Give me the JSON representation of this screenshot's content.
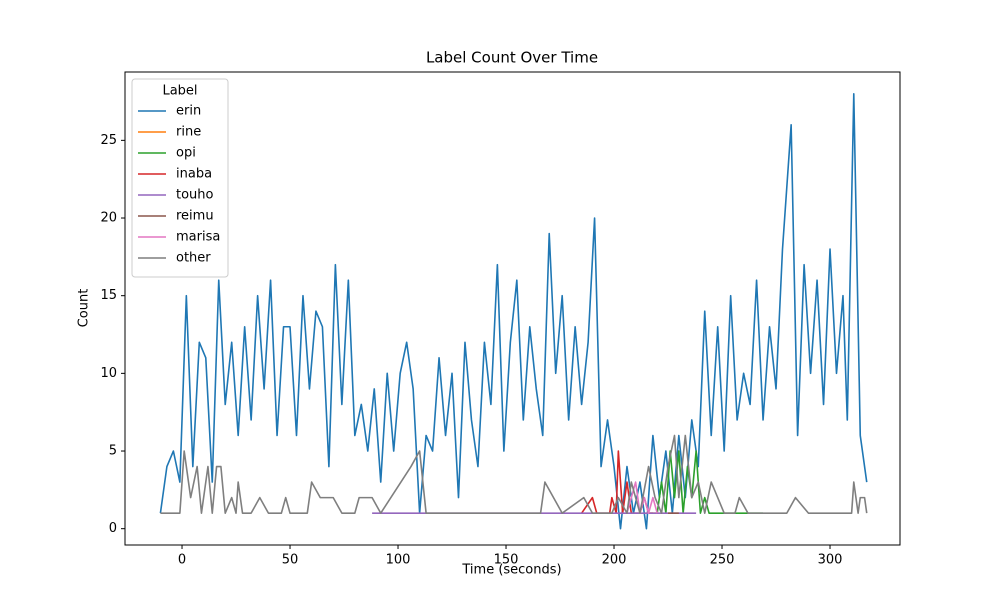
{
  "chart_data": {
    "type": "line",
    "title": "Label Count Over Time",
    "xlabel": "Time (seconds)",
    "ylabel": "Count",
    "legend_title": "Label",
    "legend": "upper left",
    "grid": false,
    "xlim": [
      -26.4,
      332.4
    ],
    "ylim": [
      -1.05,
      29.4
    ],
    "xticks": [
      0,
      50,
      100,
      150,
      200,
      250,
      300
    ],
    "yticks": [
      0,
      5,
      10,
      15,
      20,
      25
    ],
    "series": [
      {
        "name": "erin",
        "color": "#1f77b4",
        "x": [
          -10,
          -7,
          -4,
          -1,
          2,
          5,
          8,
          11,
          14,
          17,
          20,
          23,
          26,
          29,
          32,
          35,
          38,
          41,
          44,
          47,
          50,
          53,
          56,
          59,
          62,
          65,
          68,
          71,
          74,
          77,
          80,
          83,
          86,
          89,
          92,
          95,
          98,
          101,
          104,
          107,
          110,
          113,
          116,
          119,
          122,
          125,
          128,
          131,
          134,
          137,
          140,
          143,
          146,
          149,
          152,
          155,
          158,
          161,
          164,
          167,
          170,
          173,
          176,
          179,
          182,
          185,
          188,
          191,
          194,
          197,
          200,
          203,
          206,
          209,
          212,
          215,
          218,
          221,
          224,
          227,
          230,
          233,
          236,
          239,
          242,
          245,
          248,
          251,
          254,
          257,
          260,
          263,
          266,
          269,
          272,
          275,
          278,
          282,
          285,
          288,
          291,
          294,
          297,
          300,
          303,
          306,
          308,
          311,
          314,
          317
        ],
        "values": [
          1,
          4,
          5,
          3,
          15,
          4,
          12,
          11,
          3,
          16,
          8,
          12,
          6,
          13,
          7,
          15,
          9,
          16,
          6,
          13,
          13,
          6,
          15,
          9,
          14,
          13,
          4,
          17,
          8,
          16,
          6,
          8,
          5,
          9,
          3,
          10,
          5,
          10,
          12,
          9,
          1,
          6,
          5,
          11,
          6,
          10,
          2,
          12,
          7,
          4,
          12,
          8,
          17,
          5,
          12,
          16,
          7,
          13,
          9,
          6,
          19,
          10,
          15,
          7,
          13,
          8,
          12,
          20,
          4,
          7,
          4,
          0,
          4,
          1,
          3,
          0,
          6,
          2,
          5,
          1,
          6,
          2,
          7,
          4,
          14,
          6,
          13,
          5,
          15,
          7,
          10,
          8,
          16,
          7,
          13,
          9,
          18,
          26,
          6,
          17,
          10,
          16,
          8,
          18,
          10,
          15,
          7,
          28,
          6,
          3
        ]
      },
      {
        "name": "rine",
        "color": "#ff7f0e",
        "x": [
          215,
          220
        ],
        "values": [
          1,
          1
        ]
      },
      {
        "name": "opi",
        "color": "#2ca02c",
        "x": [
          220,
          222,
          224,
          226,
          228,
          230,
          232,
          234,
          236,
          238,
          240,
          242,
          244,
          248,
          252,
          269
        ],
        "values": [
          1,
          3,
          1,
          5,
          2,
          5,
          1,
          4,
          2,
          5,
          1,
          2,
          1,
          1,
          1,
          1
        ]
      },
      {
        "name": "inaba",
        "color": "#d62728",
        "x": [
          185,
          190,
          192,
          198,
          199,
          201,
          202,
          204,
          206,
          208,
          210,
          212,
          214,
          216,
          218
        ],
        "values": [
          1,
          2,
          1,
          1,
          2,
          1,
          5,
          1,
          3,
          1,
          1,
          1,
          2,
          1,
          1
        ]
      },
      {
        "name": "touho",
        "color": "#9467bd",
        "x": [
          88,
          238
        ],
        "values": [
          1,
          1
        ]
      },
      {
        "name": "reimu",
        "color": "#8c564b",
        "x": [
          225,
          230
        ],
        "values": [
          1,
          1
        ]
      },
      {
        "name": "marisa",
        "color": "#e377c2",
        "x": [
          206,
          208,
          210,
          212,
          214,
          216,
          218,
          220
        ],
        "values": [
          1,
          2,
          3,
          1,
          2,
          1,
          2,
          1
        ]
      },
      {
        "name": "other",
        "color": "#7f7f7f",
        "x": [
          -10,
          -1,
          1,
          4,
          7,
          9,
          12,
          14,
          16,
          18,
          20,
          23,
          25,
          26,
          28,
          32,
          36,
          40,
          46,
          48,
          50,
          53,
          58,
          60,
          64,
          70,
          74,
          80,
          82,
          88,
          92,
          106,
          110,
          113,
          118,
          128,
          134,
          150,
          158,
          166,
          168,
          176,
          186,
          190,
          196,
          199,
          202,
          206,
          208,
          212,
          216,
          219,
          222,
          225,
          228,
          230,
          233,
          236,
          239,
          242,
          245,
          248,
          251,
          256,
          258,
          262,
          280,
          284,
          290,
          300,
          310,
          311,
          313,
          314,
          316,
          317
        ],
        "values": [
          1,
          1,
          5,
          2,
          4,
          1,
          4,
          1,
          4,
          4,
          1,
          2,
          1,
          3,
          1,
          1,
          2,
          1,
          1,
          2,
          1,
          1,
          1,
          3,
          2,
          2,
          1,
          1,
          2,
          2,
          1,
          4,
          5,
          1,
          1,
          1,
          1,
          1,
          1,
          1,
          3,
          1,
          2,
          1,
          1,
          1,
          2,
          1,
          3,
          1,
          4,
          2,
          1,
          4,
          6,
          2,
          6,
          2,
          3,
          1,
          3,
          2,
          1,
          1,
          2,
          1,
          1,
          2,
          1,
          1,
          1,
          3,
          1,
          2,
          2,
          1
        ]
      }
    ]
  }
}
